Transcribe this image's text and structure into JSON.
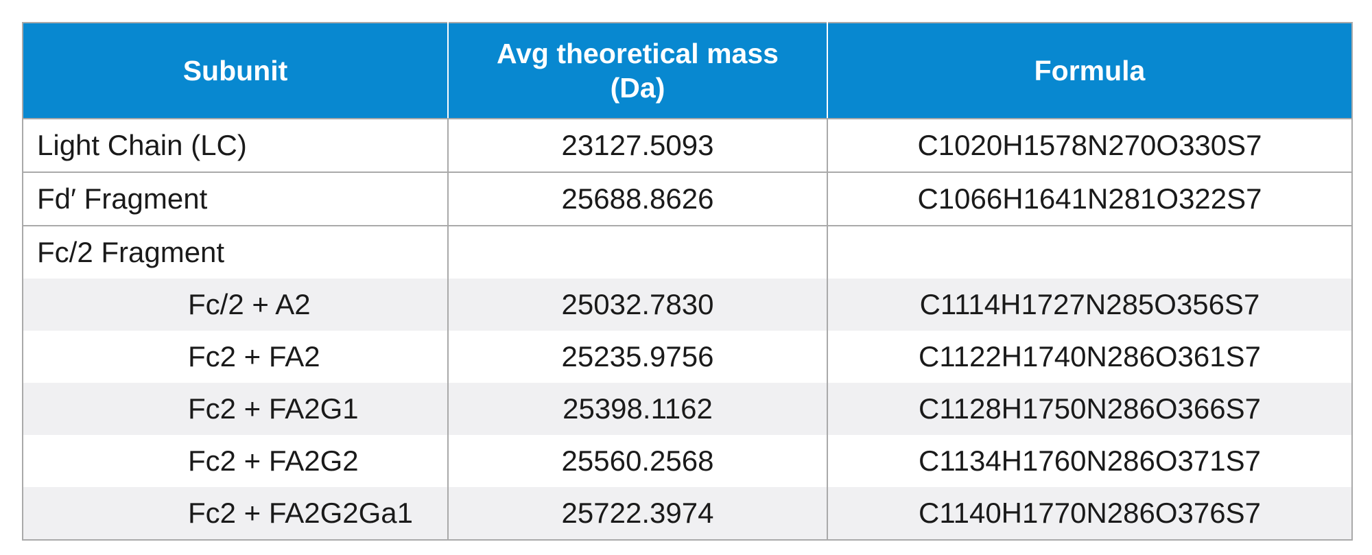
{
  "table": {
    "headers": {
      "subunit": "Subunit",
      "mass_line1": "Avg theoretical mass",
      "mass_line2": "(Da)",
      "formula": "Formula"
    },
    "rows": [
      {
        "name": "Light Chain (LC)",
        "mass": "23127.5093",
        "formula": "C1020H1578N270O330S7"
      },
      {
        "name": "Fd′ Fragment",
        "mass": "25688.8626",
        "formula": "C1066H1641N281O322S7"
      },
      {
        "name": "Fc/2 Fragment",
        "mass": "",
        "formula": ""
      },
      {
        "name": "Fc/2 + A2",
        "mass": "25032.7830",
        "formula": "C1114H1727N285O356S7"
      },
      {
        "name": "Fc2 + FA2",
        "mass": "25235.9756",
        "formula": "C1122H1740N286O361S7"
      },
      {
        "name": "Fc2 + FA2G1",
        "mass": "25398.1162",
        "formula": "C1128H1750N286O366S7"
      },
      {
        "name": "Fc2 + FA2G2",
        "mass": "25560.2568",
        "formula": "C1134H1760N286O371S7"
      },
      {
        "name": "Fc2 + FA2G2Ga1",
        "mass": "25722.3974",
        "formula": "C1140H1770N286O376S7"
      }
    ]
  },
  "colors": {
    "header_bg": "#0888d0",
    "header_text": "#ffffff",
    "shade_row": "#f0f0f2",
    "border": "#a9a9a9"
  }
}
